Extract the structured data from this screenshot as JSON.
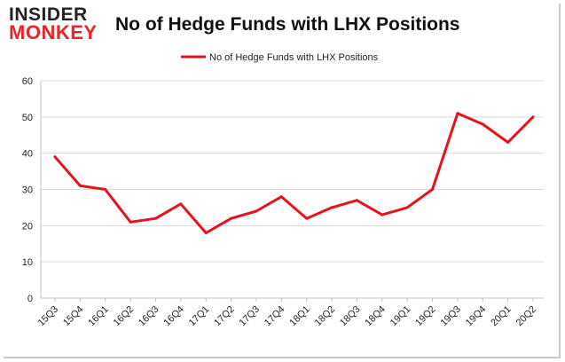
{
  "logo": {
    "line1": "INSIDER",
    "line2": "MONKEY"
  },
  "chart_data": {
    "type": "line",
    "title": "No of Hedge Funds with LHX Positions",
    "xlabel": "",
    "ylabel": "",
    "categories": [
      "15Q3",
      "15Q4",
      "16Q1",
      "16Q2",
      "16Q3",
      "16Q4",
      "17Q1",
      "17Q2",
      "17Q3",
      "17Q4",
      "18Q1",
      "18Q2",
      "18Q3",
      "18Q4",
      "19Q1",
      "19Q2",
      "19Q3",
      "19Q4",
      "20Q1",
      "20Q2"
    ],
    "series": [
      {
        "name": "No of Hedge Funds with LHX Positions",
        "color": "#e8121c",
        "values": [
          39,
          31,
          30,
          21,
          22,
          26,
          18,
          22,
          24,
          28,
          22,
          25,
          27,
          23,
          25,
          30,
          51,
          48,
          43,
          50
        ]
      }
    ],
    "ylim": [
      0,
      60
    ],
    "yticks": [
      "0",
      "10",
      "20",
      "30",
      "40",
      "50",
      "60"
    ],
    "grid": true,
    "legend": "top-center"
  }
}
